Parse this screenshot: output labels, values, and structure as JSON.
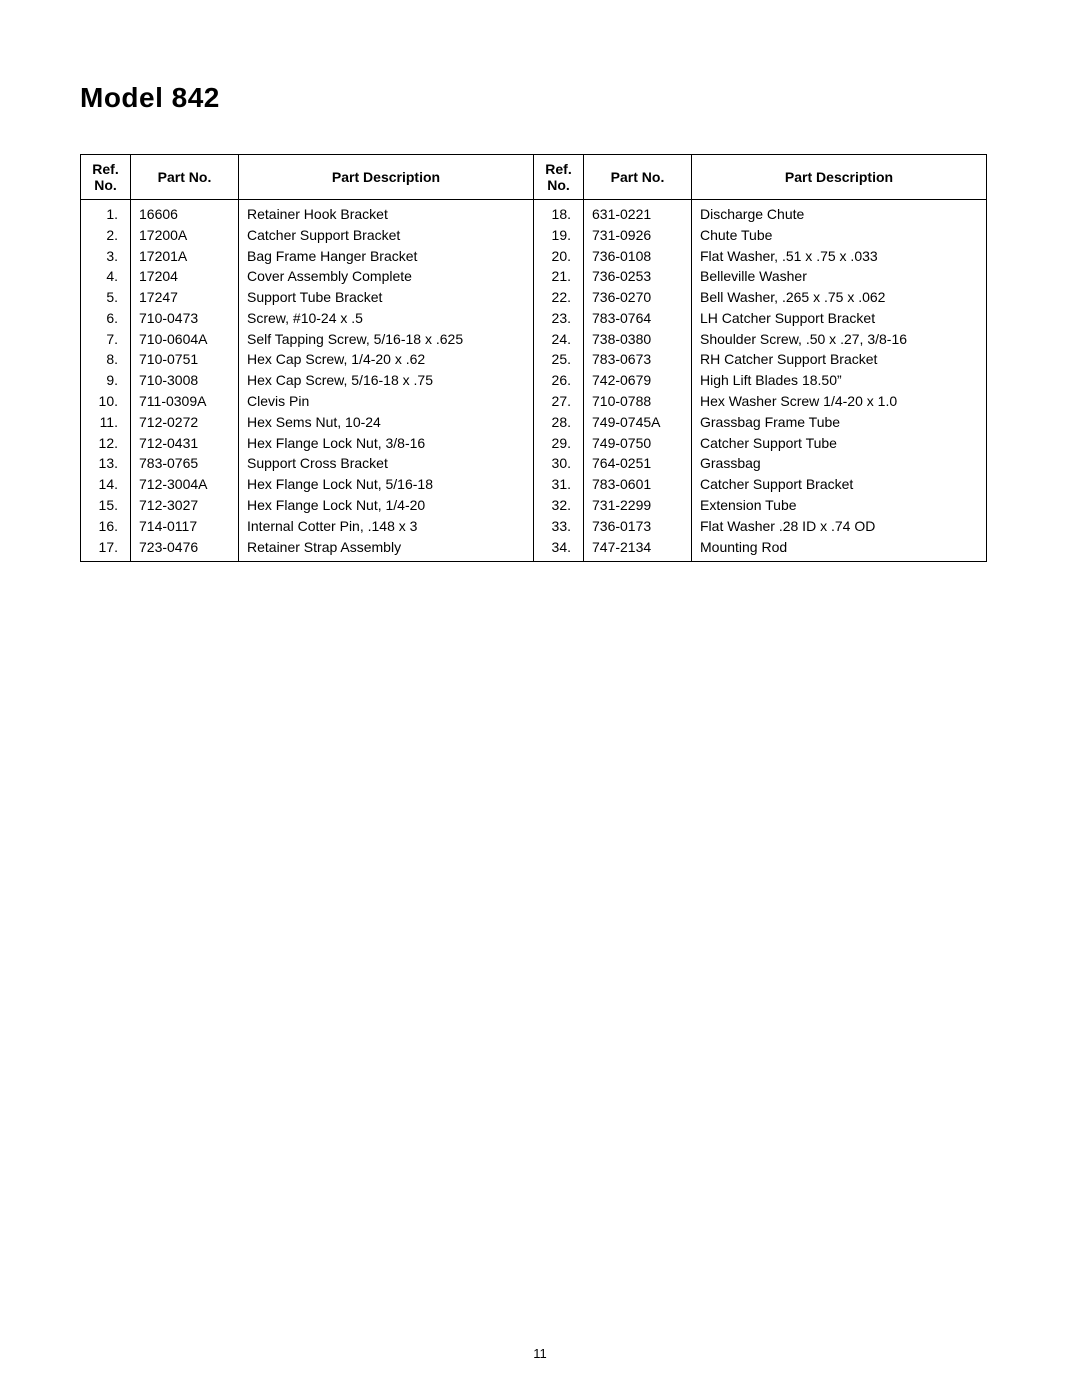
{
  "title": "Model 842",
  "page_number": "11",
  "table": {
    "headers": {
      "ref": "Ref.\nNo.",
      "part": "Part No.",
      "desc": "Part Description"
    },
    "rows_left": [
      {
        "ref": "1.",
        "part": "16606",
        "desc": "Retainer Hook Bracket"
      },
      {
        "ref": "2.",
        "part": "17200A",
        "desc": "Catcher Support Bracket"
      },
      {
        "ref": "3.",
        "part": "17201A",
        "desc": "Bag Frame Hanger Bracket"
      },
      {
        "ref": "4.",
        "part": "17204",
        "desc": "Cover Assembly Complete"
      },
      {
        "ref": "5.",
        "part": "17247",
        "desc": "Support Tube Bracket"
      },
      {
        "ref": "6.",
        "part": "710-0473",
        "desc": "Screw, #10-24 x .5"
      },
      {
        "ref": "7.",
        "part": "710-0604A",
        "desc": "Self Tapping Screw, 5/16-18 x .625"
      },
      {
        "ref": "8.",
        "part": "710-0751",
        "desc": "Hex Cap Screw, 1/4-20 x .62"
      },
      {
        "ref": "9.",
        "part": "710-3008",
        "desc": "Hex Cap Screw, 5/16-18 x .75"
      },
      {
        "ref": "10.",
        "part": "711-0309A",
        "desc": "Clevis Pin"
      },
      {
        "ref": "11.",
        "part": "712-0272",
        "desc": "Hex Sems Nut, 10-24"
      },
      {
        "ref": "12.",
        "part": "712-0431",
        "desc": "Hex Flange Lock Nut, 3/8-16"
      },
      {
        "ref": "13.",
        "part": "783-0765",
        "desc": "Support Cross Bracket"
      },
      {
        "ref": "14.",
        "part": "712-3004A",
        "desc": "Hex Flange Lock Nut, 5/16-18"
      },
      {
        "ref": "15.",
        "part": "712-3027",
        "desc": "Hex Flange Lock Nut, 1/4-20"
      },
      {
        "ref": "16.",
        "part": "714-0117",
        "desc": "Internal Cotter Pin, .148 x 3"
      },
      {
        "ref": "17.",
        "part": "723-0476",
        "desc": "Retainer Strap Assembly"
      }
    ],
    "rows_right": [
      {
        "ref": "18.",
        "part": "631-0221",
        "desc": "Discharge Chute"
      },
      {
        "ref": "19.",
        "part": "731-0926",
        "desc": "Chute Tube"
      },
      {
        "ref": "20.",
        "part": "736-0108",
        "desc": "Flat Washer, .51 x .75 x .033"
      },
      {
        "ref": "21.",
        "part": "736-0253",
        "desc": "Belleville Washer"
      },
      {
        "ref": "22.",
        "part": "736-0270",
        "desc": "Bell Washer, .265 x .75 x .062"
      },
      {
        "ref": "23.",
        "part": "783-0764",
        "desc": "LH Catcher Support Bracket"
      },
      {
        "ref": "24.",
        "part": "738-0380",
        "desc": "Shoulder Screw, .50 x .27, 3/8-16"
      },
      {
        "ref": "25.",
        "part": "783-0673",
        "desc": "RH Catcher Support Bracket"
      },
      {
        "ref": "26.",
        "part": "742-0679",
        "desc": "High Lift Blades 18.50”"
      },
      {
        "ref": "27.",
        "part": "710-0788",
        "desc": "Hex Washer Screw 1/4-20 x 1.0"
      },
      {
        "ref": "28.",
        "part": "749-0745A",
        "desc": "Grassbag Frame Tube"
      },
      {
        "ref": "29.",
        "part": "749-0750",
        "desc": "Catcher Support Tube"
      },
      {
        "ref": "30.",
        "part": "764-0251",
        "desc": "Grassbag"
      },
      {
        "ref": "31.",
        "part": "783-0601",
        "desc": "Catcher Support Bracket"
      },
      {
        "ref": "32.",
        "part": "731-2299",
        "desc": "Extension Tube"
      },
      {
        "ref": "33.",
        "part": "736-0173",
        "desc": "Flat Washer .28 ID x .74 OD"
      },
      {
        "ref": "34.",
        "part": "747-2134",
        "desc": "Mounting Rod"
      }
    ]
  }
}
